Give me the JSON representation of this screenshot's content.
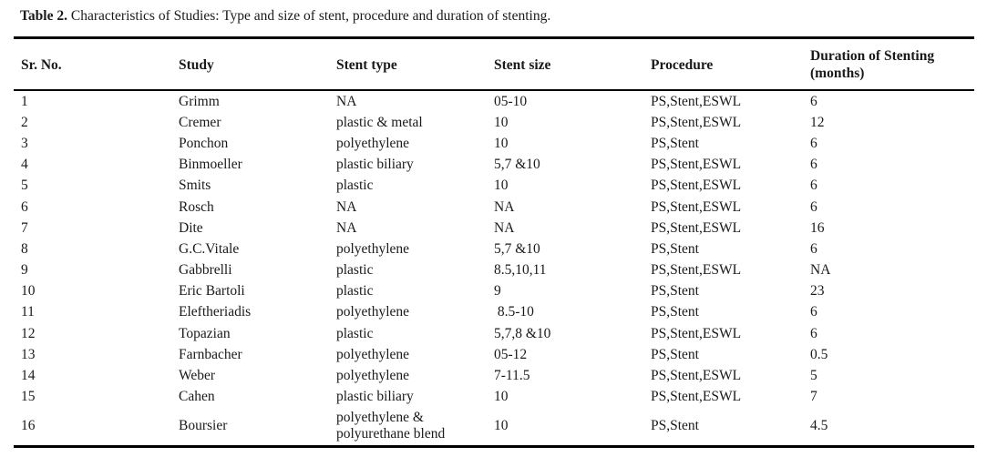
{
  "title": {
    "label": "Table 2.",
    "text": " Characteristics of Studies: Type and size of stent, procedure and duration of stenting."
  },
  "table": {
    "columns": [
      "Sr. No.",
      "Study",
      "Stent type",
      "Stent size",
      "Procedure",
      "Duration of Stenting (months)"
    ],
    "rows": [
      [
        "1",
        "Grimm",
        "NA",
        "05-10",
        "PS,Stent,ESWL",
        "6"
      ],
      [
        "2",
        "Cremer",
        "plastic & metal",
        "10",
        "PS,Stent,ESWL",
        "12"
      ],
      [
        "3",
        "Ponchon",
        "polyethylene",
        "10",
        "PS,Stent",
        "6"
      ],
      [
        "4",
        "Binmoeller",
        "plastic biliary",
        "5,7 &10",
        "PS,Stent,ESWL",
        "6"
      ],
      [
        "5",
        "Smits",
        "plastic",
        "10",
        "PS,Stent,ESWL",
        "6"
      ],
      [
        "6",
        "Rosch",
        "NA",
        "NA",
        "PS,Stent,ESWL",
        "6"
      ],
      [
        "7",
        "Dite",
        "NA",
        "NA",
        "PS,Stent,ESWL",
        "16"
      ],
      [
        "8",
        "G.C.Vitale",
        "polyethylene",
        "5,7 &10",
        "PS,Stent",
        "6"
      ],
      [
        "9",
        "Gabbrelli",
        "plastic",
        "8.5,10,11",
        "PS,Stent,ESWL",
        "NA"
      ],
      [
        "10",
        "Eric Bartoli",
        "plastic",
        "9",
        "PS,Stent",
        "23"
      ],
      [
        "11",
        "Eleftheriadis",
        "polyethylene",
        " 8.5-10",
        "PS,Stent",
        "6"
      ],
      [
        "12",
        "Topazian",
        "plastic",
        "5,7,8 &10",
        "PS,Stent,ESWL",
        "6"
      ],
      [
        "13",
        "Farnbacher",
        "polyethylene",
        "05-12",
        "PS,Stent",
        "0.5"
      ],
      [
        "14",
        "Weber",
        "polyethylene",
        "7-11.5",
        "PS,Stent,ESWL",
        "5"
      ],
      [
        "15",
        "Cahen",
        "plastic biliary",
        "10",
        "PS,Stent,ESWL",
        "7"
      ],
      [
        "16",
        "Boursier",
        "polyethylene & polyurethane blend",
        "10",
        "PS,Stent",
        "4.5"
      ]
    ]
  },
  "colors": {
    "text": "#1a1a1a",
    "border": "#000000",
    "background": "#ffffff"
  }
}
